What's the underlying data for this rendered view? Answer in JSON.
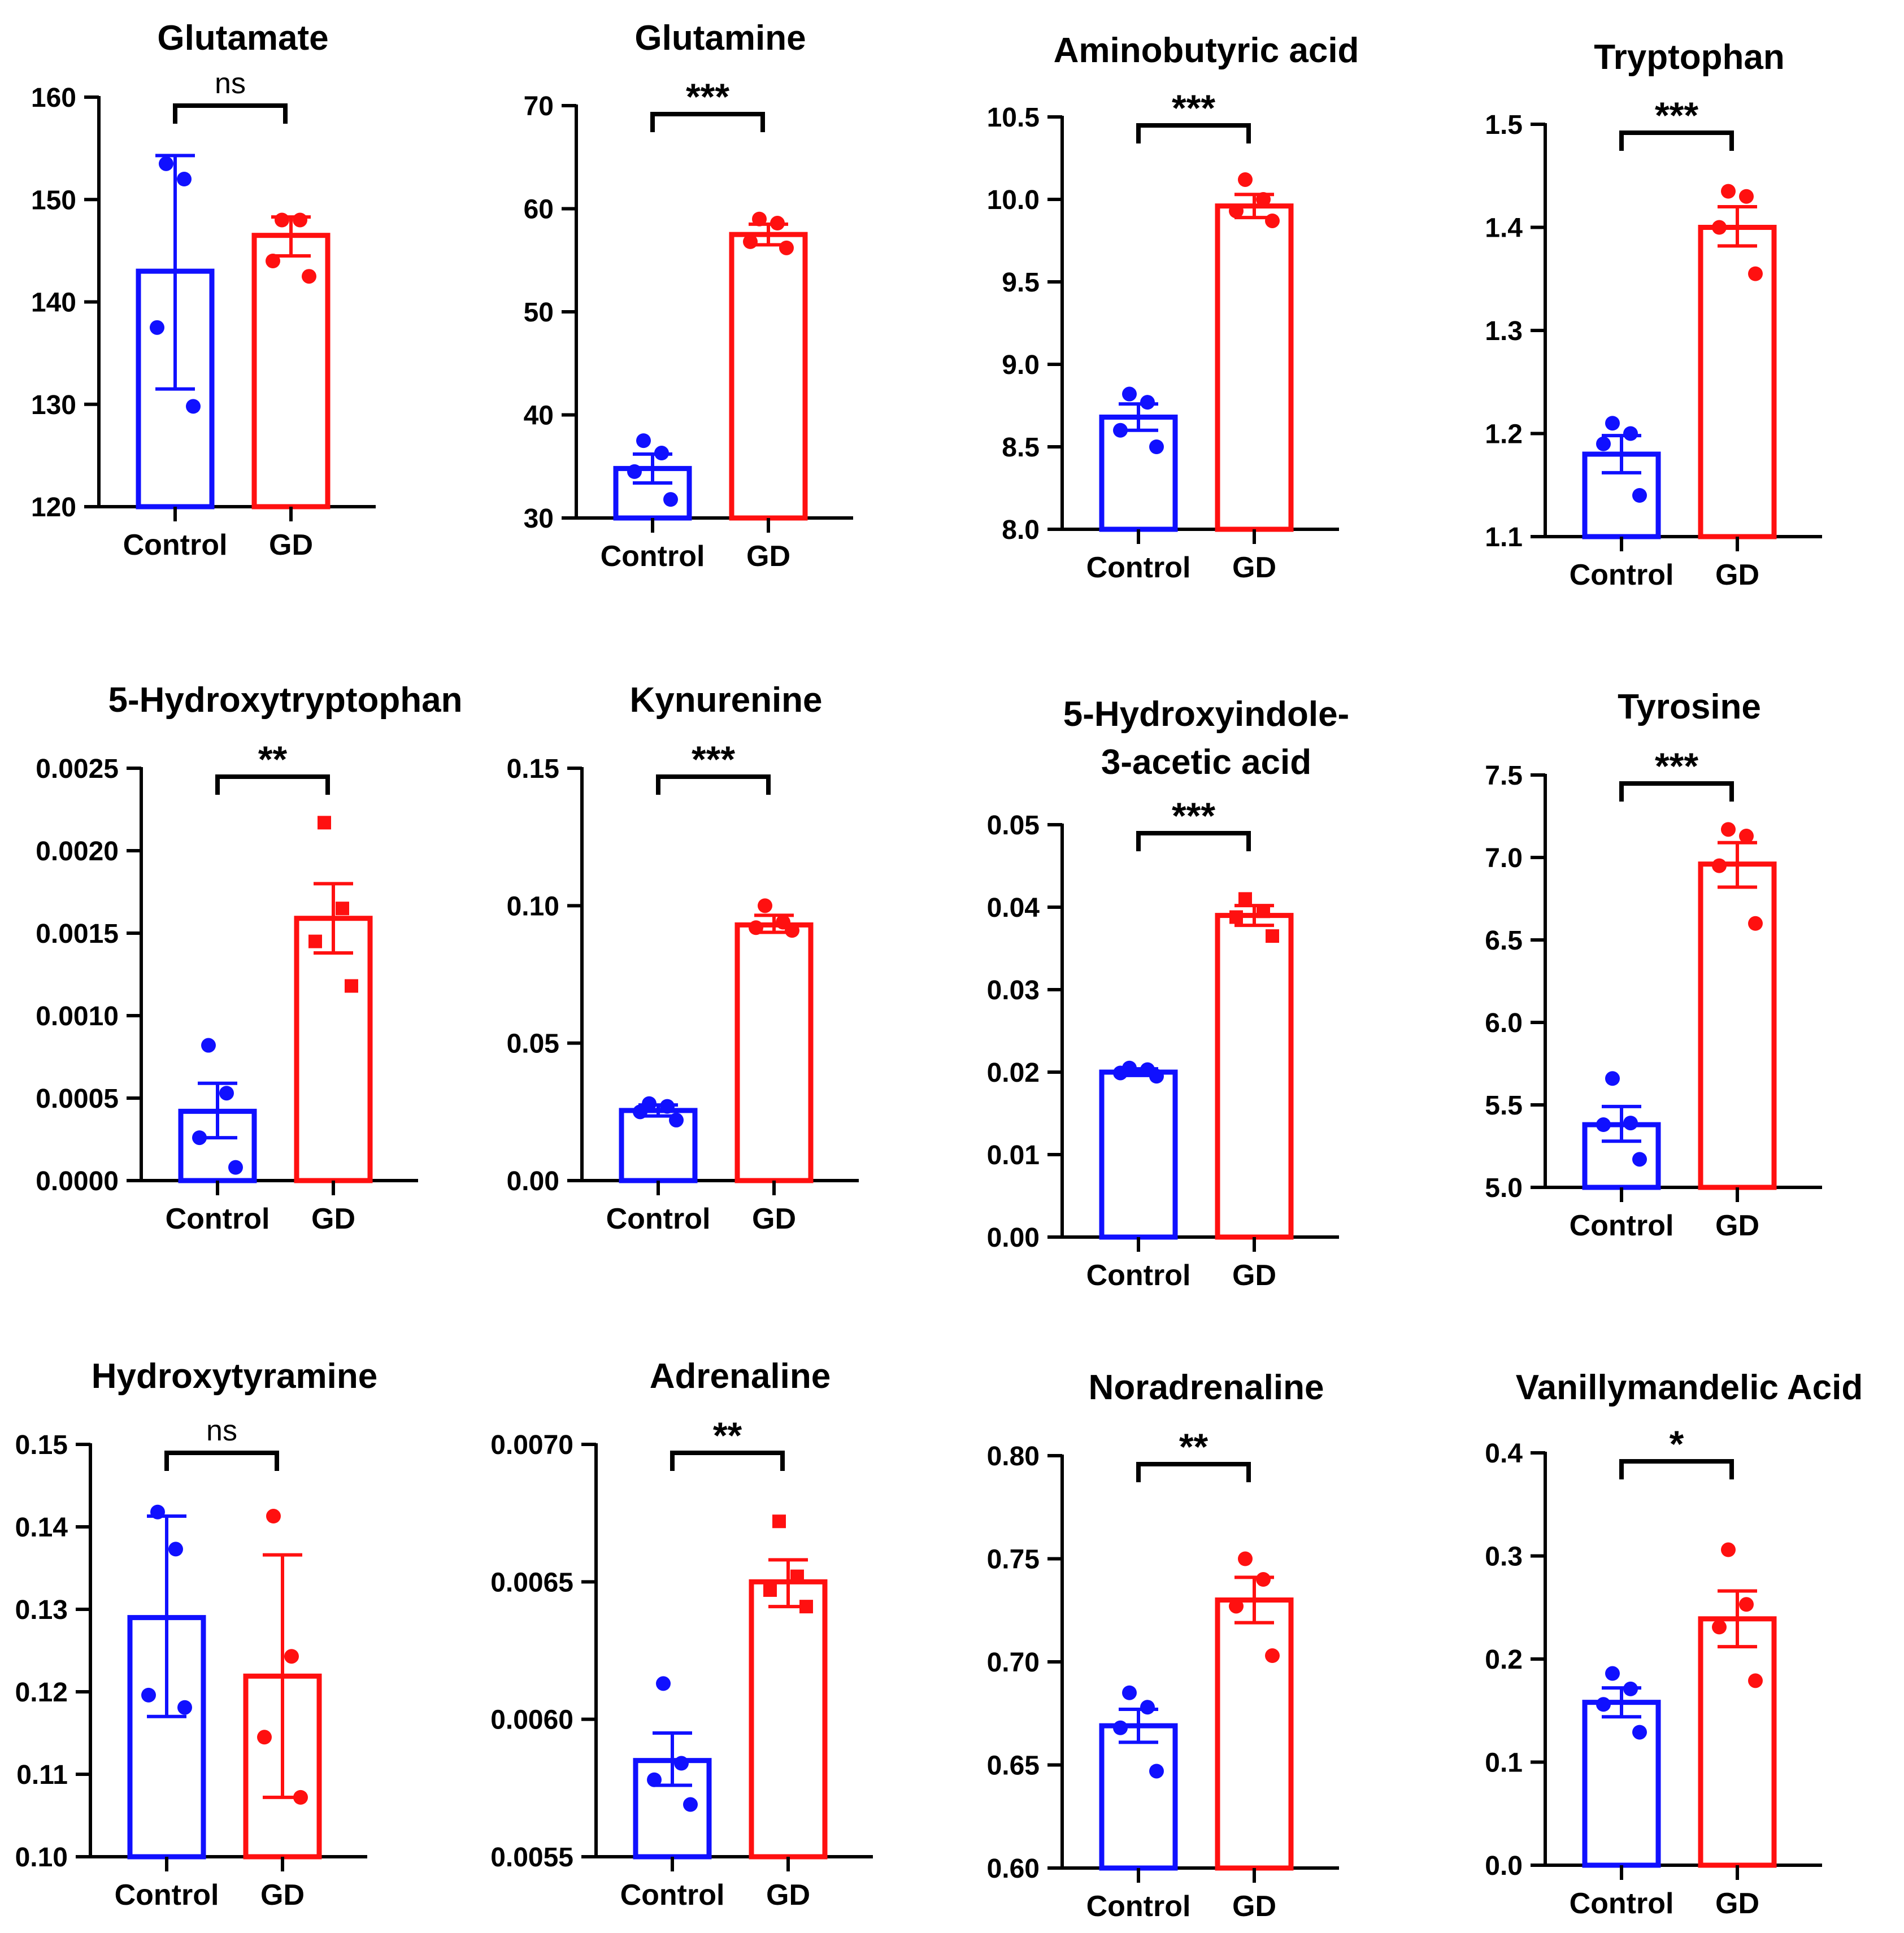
{
  "colors": {
    "control": "#1010ff",
    "gd": "#ff1010",
    "axis": "#000000"
  },
  "chart_data": [
    {
      "type": "bar",
      "title": [
        "Glutamate"
      ],
      "categories": [
        "Control",
        "GD"
      ],
      "ylim": [
        120,
        160
      ],
      "yticks": [
        "120",
        "130",
        "140",
        "150",
        "160"
      ],
      "tick_values": [
        120,
        130,
        140,
        150,
        160
      ],
      "series": [
        {
          "name": "Control",
          "mean": 143,
          "err_low": 131.5,
          "err_high": 154.3,
          "points": [
            153.5,
            152,
            137.5,
            129.8
          ],
          "marker": "circle"
        },
        {
          "name": "GD",
          "mean": 146.5,
          "err_low": 144.5,
          "err_high": 148.3,
          "points": [
            148,
            148,
            144,
            142.5
          ],
          "marker": "circle"
        }
      ],
      "significance": "ns"
    },
    {
      "type": "bar",
      "title": [
        "Glutamine"
      ],
      "categories": [
        "Control",
        "GD"
      ],
      "ylim": [
        30,
        70
      ],
      "yticks": [
        "30",
        "40",
        "50",
        "60",
        "70"
      ],
      "tick_values": [
        30,
        40,
        50,
        60,
        70
      ],
      "series": [
        {
          "name": "Control",
          "mean": 34.8,
          "err_low": 33.4,
          "err_high": 36.2,
          "points": [
            37.5,
            36.3,
            34.5,
            31.8
          ],
          "marker": "circle"
        },
        {
          "name": "GD",
          "mean": 57.5,
          "err_low": 56.5,
          "err_high": 58.5,
          "points": [
            59,
            58.6,
            56.8,
            56.2
          ],
          "marker": "circle"
        }
      ],
      "significance": "***"
    },
    {
      "type": "bar",
      "title": [
        "Aminobutyric acid"
      ],
      "categories": [
        "Control",
        "GD"
      ],
      "ylim": [
        8.0,
        10.5
      ],
      "yticks": [
        "8.0",
        "8.5",
        "9.0",
        "9.5",
        "10.0",
        "10.5"
      ],
      "tick_values": [
        8.0,
        8.5,
        9.0,
        9.5,
        10.0,
        10.5
      ],
      "series": [
        {
          "name": "Control",
          "mean": 8.68,
          "err_low": 8.6,
          "err_high": 8.76,
          "points": [
            8.82,
            8.77,
            8.6,
            8.5
          ],
          "marker": "circle"
        },
        {
          "name": "GD",
          "mean": 9.96,
          "err_low": 9.89,
          "err_high": 10.03,
          "points": [
            10.12,
            10.0,
            9.93,
            9.87
          ],
          "marker": "circle"
        }
      ],
      "significance": "***"
    },
    {
      "type": "bar",
      "title": [
        "Tryptophan"
      ],
      "categories": [
        "Control",
        "GD"
      ],
      "ylim": [
        1.1,
        1.5
      ],
      "yticks": [
        "1.1",
        "1.2",
        "1.3",
        "1.4",
        "1.5"
      ],
      "tick_values": [
        1.1,
        1.2,
        1.3,
        1.4,
        1.5
      ],
      "series": [
        {
          "name": "Control",
          "mean": 1.18,
          "err_low": 1.162,
          "err_high": 1.198,
          "points": [
            1.21,
            1.2,
            1.19,
            1.14
          ],
          "marker": "circle"
        },
        {
          "name": "GD",
          "mean": 1.4,
          "err_low": 1.382,
          "err_high": 1.42,
          "points": [
            1.435,
            1.43,
            1.4,
            1.355
          ],
          "marker": "circle"
        }
      ],
      "significance": "***"
    },
    {
      "type": "bar",
      "title": [
        "5-Hydroxytryptophan"
      ],
      "categories": [
        "Control",
        "GD"
      ],
      "ylim": [
        0,
        0.0025
      ],
      "yticks": [
        "0.0000",
        "0.0005",
        "0.0010",
        "0.0015",
        "0.0020",
        "0.0025"
      ],
      "tick_values": [
        0,
        0.0005,
        0.001,
        0.0015,
        0.002,
        0.0025
      ],
      "series": [
        {
          "name": "Control",
          "mean": 0.00042,
          "err_low": 0.00026,
          "err_high": 0.00059,
          "points": [
            0.00082,
            0.00053,
            0.00026,
            8e-05
          ],
          "marker": "circle"
        },
        {
          "name": "GD",
          "mean": 0.00159,
          "err_low": 0.00138,
          "err_high": 0.0018,
          "points": [
            0.00217,
            0.00165,
            0.00145,
            0.00118
          ],
          "marker": "square"
        }
      ],
      "significance": "**"
    },
    {
      "type": "bar",
      "title": [
        "Kynurenine"
      ],
      "categories": [
        "Control",
        "GD"
      ],
      "ylim": [
        0,
        0.15
      ],
      "yticks": [
        "0.00",
        "0.05",
        "0.10",
        "0.15"
      ],
      "tick_values": [
        0,
        0.05,
        0.1,
        0.15
      ],
      "series": [
        {
          "name": "Control",
          "mean": 0.0255,
          "err_low": 0.0235,
          "err_high": 0.0275,
          "points": [
            0.028,
            0.027,
            0.025,
            0.022
          ],
          "marker": "circle"
        },
        {
          "name": "GD",
          "mean": 0.093,
          "err_low": 0.0903,
          "err_high": 0.0965,
          "points": [
            0.1,
            0.094,
            0.092,
            0.091
          ],
          "marker": "circle"
        }
      ],
      "significance": "***"
    },
    {
      "type": "bar",
      "title": [
        "5-Hydroxyindole-",
        "3-acetic acid"
      ],
      "categories": [
        "Control",
        "GD"
      ],
      "ylim": [
        0,
        0.05
      ],
      "yticks": [
        "0.00",
        "0.01",
        "0.02",
        "0.03",
        "0.04",
        "0.05"
      ],
      "tick_values": [
        0,
        0.01,
        0.02,
        0.03,
        0.04,
        0.05
      ],
      "series": [
        {
          "name": "Control",
          "mean": 0.02,
          "err_low": 0.0196,
          "err_high": 0.0204,
          "points": [
            0.0205,
            0.0203,
            0.0199,
            0.0195
          ],
          "marker": "circle"
        },
        {
          "name": "GD",
          "mean": 0.039,
          "err_low": 0.0378,
          "err_high": 0.0402,
          "points": [
            0.041,
            0.0395,
            0.0388,
            0.0365
          ],
          "marker": "square"
        }
      ],
      "significance": "***"
    },
    {
      "type": "bar",
      "title": [
        "Tyrosine"
      ],
      "categories": [
        "Control",
        "GD"
      ],
      "ylim": [
        5.0,
        7.5
      ],
      "yticks": [
        "5.0",
        "5.5",
        "6.0",
        "6.5",
        "7.0",
        "7.5"
      ],
      "tick_values": [
        5.0,
        5.5,
        6.0,
        6.5,
        7.0,
        7.5
      ],
      "series": [
        {
          "name": "Control",
          "mean": 5.38,
          "err_low": 5.28,
          "err_high": 5.49,
          "points": [
            5.66,
            5.39,
            5.38,
            5.17
          ],
          "marker": "circle"
        },
        {
          "name": "GD",
          "mean": 6.96,
          "err_low": 6.82,
          "err_high": 7.09,
          "points": [
            7.17,
            7.13,
            6.95,
            6.6
          ],
          "marker": "circle"
        }
      ],
      "significance": "***"
    },
    {
      "type": "bar",
      "title": [
        "Hydroxytyramine"
      ],
      "categories": [
        "Control",
        "GD"
      ],
      "ylim": [
        0.1,
        0.15
      ],
      "yticks": [
        "0.10",
        "0.11",
        "0.12",
        "0.13",
        "0.14",
        "0.15"
      ],
      "tick_values": [
        0.1,
        0.11,
        0.12,
        0.13,
        0.14,
        0.15
      ],
      "series": [
        {
          "name": "Control",
          "mean": 0.129,
          "err_low": 0.117,
          "err_high": 0.1413,
          "points": [
            0.1418,
            0.1373,
            0.1196,
            0.1181
          ],
          "marker": "circle"
        },
        {
          "name": "GD",
          "mean": 0.1219,
          "err_low": 0.1072,
          "err_high": 0.1366,
          "points": [
            0.1413,
            0.1243,
            0.1145,
            0.1072
          ],
          "marker": "circle"
        }
      ],
      "significance": "ns"
    },
    {
      "type": "bar",
      "title": [
        "Adrenaline"
      ],
      "categories": [
        "Control",
        "GD"
      ],
      "ylim": [
        0.0055,
        0.007
      ],
      "yticks": [
        "0.0055",
        "0.0060",
        "0.0065",
        "0.0070"
      ],
      "tick_values": [
        0.0055,
        0.006,
        0.0065,
        0.007
      ],
      "series": [
        {
          "name": "Control",
          "mean": 0.00585,
          "err_low": 0.00576,
          "err_high": 0.00595,
          "points": [
            0.00613,
            0.00584,
            0.00578,
            0.00569
          ],
          "marker": "circle"
        },
        {
          "name": "GD",
          "mean": 0.0065,
          "err_low": 0.00641,
          "err_high": 0.00658,
          "points": [
            0.00672,
            0.00652,
            0.00647,
            0.00641
          ],
          "marker": "square"
        }
      ],
      "significance": "**"
    },
    {
      "type": "bar",
      "title": [
        "Noradrenaline"
      ],
      "categories": [
        "Control",
        "GD"
      ],
      "ylim": [
        0.6,
        0.8
      ],
      "yticks": [
        "0.60",
        "0.65",
        "0.70",
        "0.75",
        "0.80"
      ],
      "tick_values": [
        0.6,
        0.65,
        0.7,
        0.75,
        0.8
      ],
      "series": [
        {
          "name": "Control",
          "mean": 0.669,
          "err_low": 0.661,
          "err_high": 0.677,
          "points": [
            0.685,
            0.678,
            0.668,
            0.647
          ],
          "marker": "circle"
        },
        {
          "name": "GD",
          "mean": 0.73,
          "err_low": 0.719,
          "err_high": 0.741,
          "points": [
            0.75,
            0.74,
            0.727,
            0.703
          ],
          "marker": "circle"
        }
      ],
      "significance": "**"
    },
    {
      "type": "bar",
      "title": [
        "Vanillymandelic Acid"
      ],
      "categories": [
        "Control",
        "GD"
      ],
      "ylim": [
        0,
        0.4
      ],
      "yticks": [
        "0.0",
        "0.1",
        "0.2",
        "0.3",
        "0.4"
      ],
      "tick_values": [
        0,
        0.1,
        0.2,
        0.3,
        0.4
      ],
      "series": [
        {
          "name": "Control",
          "mean": 0.158,
          "err_low": 0.144,
          "err_high": 0.172,
          "points": [
            0.186,
            0.171,
            0.156,
            0.129
          ],
          "marker": "circle"
        },
        {
          "name": "GD",
          "mean": 0.239,
          "err_low": 0.212,
          "err_high": 0.266,
          "points": [
            0.306,
            0.253,
            0.231,
            0.179
          ],
          "marker": "circle"
        }
      ],
      "significance": "*"
    }
  ]
}
